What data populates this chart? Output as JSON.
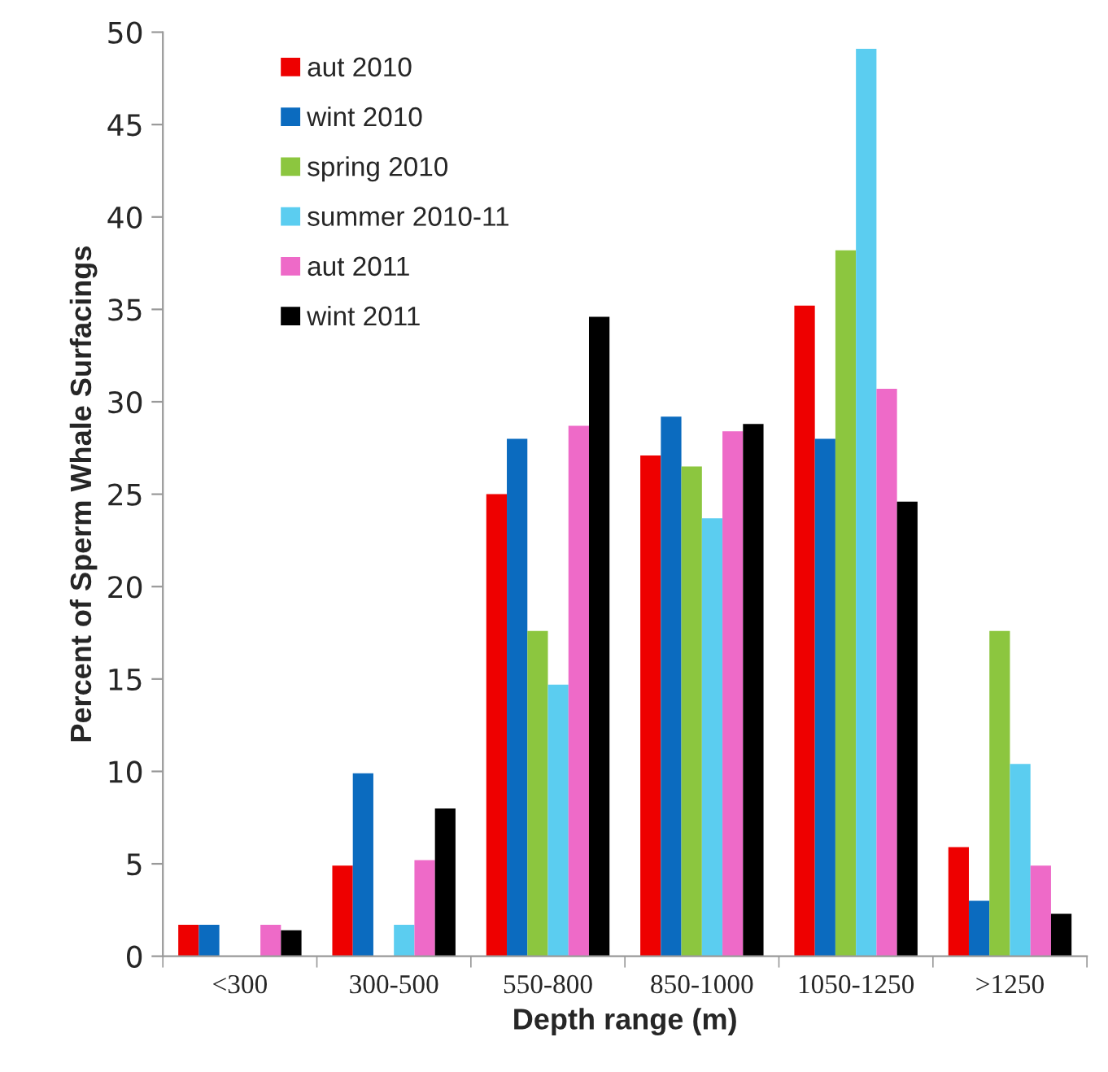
{
  "chart_data": {
    "type": "bar",
    "xlabel": "Depth range (m)",
    "ylabel": "Percent of Sperm Whale Surfacings",
    "categories": [
      "<300",
      "300-500",
      "550-800",
      "850-1000",
      "1050-1250",
      ">1250"
    ],
    "series": [
      {
        "name": "aut 2010",
        "color": "#ee0000",
        "values": [
          1.7,
          4.9,
          25,
          27.1,
          35.2,
          5.9
        ]
      },
      {
        "name": "wint 2010",
        "color": "#0b6bbf",
        "values": [
          1.7,
          9.9,
          28,
          29.2,
          28,
          3
        ]
      },
      {
        "name": "spring 2010",
        "color": "#8cc63f",
        "values": [
          0,
          0,
          17.6,
          26.5,
          38.2,
          17.6
        ]
      },
      {
        "name": "summer 2010-11",
        "color": "#5bcdf0",
        "values": [
          0,
          1.7,
          14.7,
          23.7,
          49.1,
          10.4
        ]
      },
      {
        "name": "aut 2011",
        "color": "#ee6ac8",
        "values": [
          1.7,
          5.2,
          28.7,
          28.4,
          30.7,
          4.9
        ]
      },
      {
        "name": "wint 2011",
        "color": "#000000",
        "values": [
          1.4,
          8.0,
          34.6,
          28.8,
          24.6,
          2.3
        ]
      }
    ],
    "ylim": [
      0,
      50
    ],
    "yticks": [
      0,
      5,
      10,
      15,
      20,
      25,
      30,
      35,
      40,
      45,
      50
    ],
    "grid": false,
    "legend": "top left"
  }
}
